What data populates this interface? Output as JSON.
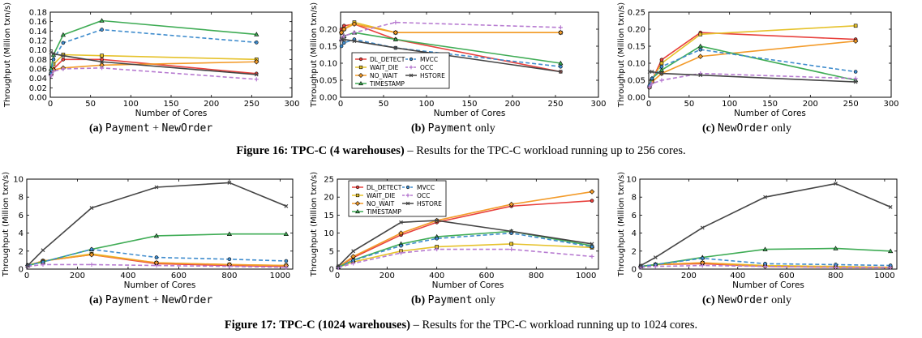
{
  "figure16": {
    "label": "Figure 16:",
    "title": "TPC-C (4 warehouses)",
    "text": "– Results for the TPC-C workload running up to 256 cores."
  },
  "figure17": {
    "label": "Figure 17:",
    "title": "TPC-C (1024 warehouses)",
    "text": "– Results for the TPC-C workload running up to 1024 cores."
  },
  "captions": [
    {
      "letter": "(a)",
      "p1": "Payment",
      "mid": " + ",
      "p2": "NewOrder",
      "tail": ""
    },
    {
      "letter": "(b)",
      "p1": "Payment",
      "mid": "",
      "p2": "",
      "tail": " only"
    },
    {
      "letter": "(c)",
      "p1": "",
      "mid": "",
      "p2": "NewOrder",
      "tail": " only"
    },
    {
      "letter": "(a)",
      "p1": "Payment",
      "mid": " + ",
      "p2": "NewOrder",
      "tail": ""
    },
    {
      "letter": "(b)",
      "p1": "Payment",
      "mid": "",
      "p2": "",
      "tail": " only"
    },
    {
      "letter": "(c)",
      "p1": "",
      "mid": "",
      "p2": "NewOrder",
      "tail": " only"
    }
  ],
  "series_styles": [
    {
      "name": "DL_DETECT",
      "color": "#e8413d",
      "dash": "",
      "marker": "circle"
    },
    {
      "name": "WAIT_DIE",
      "color": "#e6c22b",
      "dash": "",
      "marker": "square"
    },
    {
      "name": "NO_WAIT",
      "color": "#f39b2a",
      "dash": "",
      "marker": "diamond"
    },
    {
      "name": "TIMESTAMP",
      "color": "#3fac55",
      "dash": "",
      "marker": "triangle"
    },
    {
      "name": "MVCC",
      "color": "#3f8ccd",
      "dash": "5,3",
      "marker": "circle"
    },
    {
      "name": "OCC",
      "color": "#b77bd1",
      "dash": "5,3",
      "marker": "plus"
    },
    {
      "name": "HSTORE",
      "color": "#444444",
      "dash": "",
      "marker": "x"
    }
  ],
  "chart_data": [
    {
      "type": "line",
      "xlabel": "Number of Cores",
      "ylabel": "Throughput (Million txn/s)",
      "xlim": [
        0,
        300
      ],
      "ylim": [
        0,
        0.18
      ],
      "xticks": [
        "0",
        "50",
        "100",
        "150",
        "200",
        "250",
        "300"
      ],
      "yticks": [
        "0.00",
        "0.02",
        "0.04",
        "0.06",
        "0.08",
        "0.10",
        "0.12",
        "0.14",
        "0.16",
        "0.18"
      ],
      "legend": false,
      "x": [
        1,
        4,
        16,
        64,
        256
      ],
      "series": [
        {
          "name": "DL_DETECT",
          "values": [
            0.05,
            0.06,
            0.08,
            0.08,
            0.05
          ]
        },
        {
          "name": "WAIT_DIE",
          "values": [
            0.05,
            0.07,
            0.09,
            0.088,
            0.08
          ]
        },
        {
          "name": "NO_WAIT",
          "values": [
            0.048,
            0.058,
            0.062,
            0.068,
            0.075
          ]
        },
        {
          "name": "TIMESTAMP",
          "values": [
            0.06,
            0.09,
            0.132,
            0.162,
            0.133
          ]
        },
        {
          "name": "MVCC",
          "values": [
            0.05,
            0.08,
            0.115,
            0.143,
            0.116
          ]
        },
        {
          "name": "OCC",
          "values": [
            0.045,
            0.055,
            0.06,
            0.062,
            0.038
          ]
        },
        {
          "name": "HSTORE",
          "values": [
            0.095,
            0.092,
            0.088,
            0.075,
            0.048
          ]
        }
      ]
    },
    {
      "type": "line",
      "xlabel": "Number of Cores",
      "ylabel": "Throughput (Million txn/s)",
      "xlim": [
        0,
        300
      ],
      "ylim": [
        0,
        0.25
      ],
      "xticks": [
        "0",
        "50",
        "100",
        "150",
        "200",
        "250",
        "300"
      ],
      "yticks": [
        "0.00",
        "0.05",
        "0.10",
        "0.15",
        "0.20"
      ],
      "legend": true,
      "x": [
        1,
        4,
        16,
        64,
        256
      ],
      "series": [
        {
          "name": "DL_DETECT",
          "values": [
            0.2,
            0.21,
            0.215,
            0.17,
            0.075
          ]
        },
        {
          "name": "WAIT_DIE",
          "values": [
            0.19,
            0.2,
            0.22,
            0.19,
            0.19
          ]
        },
        {
          "name": "NO_WAIT",
          "values": [
            0.19,
            0.2,
            0.215,
            0.19,
            0.19
          ]
        },
        {
          "name": "TIMESTAMP",
          "values": [
            0.17,
            0.18,
            0.19,
            0.17,
            0.1
          ]
        },
        {
          "name": "MVCC",
          "values": [
            0.15,
            0.16,
            0.17,
            0.145,
            0.09
          ]
        },
        {
          "name": "OCC",
          "values": [
            0.17,
            0.18,
            0.19,
            0.22,
            0.205
          ]
        },
        {
          "name": "HSTORE",
          "values": [
            0.17,
            0.17,
            0.165,
            0.145,
            0.075
          ]
        }
      ]
    },
    {
      "type": "line",
      "xlabel": "Number of Cores",
      "ylabel": "Throughput (Million txn/s)",
      "xlim": [
        0,
        300
      ],
      "ylim": [
        0,
        0.25
      ],
      "xticks": [
        "0",
        "50",
        "100",
        "150",
        "200",
        "250",
        "300"
      ],
      "yticks": [
        "0.00",
        "0.05",
        "0.10",
        "0.15",
        "0.20",
        "0.25"
      ],
      "legend": false,
      "x": [
        1,
        4,
        16,
        64,
        256
      ],
      "series": [
        {
          "name": "DL_DETECT",
          "values": [
            0.03,
            0.05,
            0.11,
            0.19,
            0.17
          ]
        },
        {
          "name": "WAIT_DIE",
          "values": [
            0.03,
            0.05,
            0.1,
            0.185,
            0.21
          ]
        },
        {
          "name": "NO_WAIT",
          "values": [
            0.03,
            0.045,
            0.07,
            0.12,
            0.165
          ]
        },
        {
          "name": "TIMESTAMP",
          "values": [
            0.035,
            0.055,
            0.08,
            0.15,
            0.05
          ]
        },
        {
          "name": "MVCC",
          "values": [
            0.035,
            0.055,
            0.09,
            0.14,
            0.075
          ]
        },
        {
          "name": "OCC",
          "values": [
            0.03,
            0.04,
            0.05,
            0.07,
            0.055
          ]
        },
        {
          "name": "HSTORE",
          "values": [
            0.075,
            0.075,
            0.07,
            0.065,
            0.045
          ]
        }
      ]
    },
    {
      "type": "line",
      "xlabel": "Number of Cores",
      "ylabel": "Throughput (Million txn/s)",
      "xlim": [
        0,
        1050
      ],
      "ylim": [
        0,
        10
      ],
      "xticks": [
        "0",
        "200",
        "400",
        "600",
        "800",
        "1000"
      ],
      "yticks": [
        "0",
        "2",
        "4",
        "6",
        "8",
        "10"
      ],
      "legend": false,
      "x": [
        4,
        64,
        256,
        512,
        800,
        1024
      ],
      "series": [
        {
          "name": "DL_DETECT",
          "values": [
            0.4,
            0.9,
            1.6,
            0.6,
            0.4,
            0.3
          ]
        },
        {
          "name": "WAIT_DIE",
          "values": [
            0.4,
            0.9,
            1.7,
            0.7,
            0.5,
            0.4
          ]
        },
        {
          "name": "NO_WAIT",
          "values": [
            0.4,
            0.9,
            1.6,
            0.7,
            0.5,
            0.4
          ]
        },
        {
          "name": "TIMESTAMP",
          "values": [
            0.4,
            0.8,
            2.2,
            3.7,
            3.9,
            3.9
          ]
        },
        {
          "name": "MVCC",
          "values": [
            0.4,
            0.8,
            2.2,
            1.3,
            1.1,
            0.9
          ]
        },
        {
          "name": "OCC",
          "values": [
            0.3,
            0.5,
            0.5,
            0.4,
            0.3,
            0.2
          ]
        },
        {
          "name": "HSTORE",
          "values": [
            0.4,
            2.1,
            6.8,
            9.1,
            9.6,
            7.0
          ]
        }
      ]
    },
    {
      "type": "line",
      "xlabel": "Number of Cores",
      "ylabel": "Throughput (Million txn/s)",
      "xlim": [
        0,
        1050
      ],
      "ylim": [
        0,
        25
      ],
      "xticks": [
        "0",
        "200",
        "400",
        "600",
        "800",
        "1000"
      ],
      "yticks": [
        "0",
        "5",
        "10",
        "15",
        "20",
        "25"
      ],
      "legend": true,
      "x": [
        4,
        64,
        256,
        400,
        700,
        1024
      ],
      "series": [
        {
          "name": "DL_DETECT",
          "values": [
            0.6,
            3.2,
            9.5,
            13,
            17.5,
            19
          ]
        },
        {
          "name": "WAIT_DIE",
          "values": [
            0.5,
            2.0,
            5.0,
            6.2,
            7.0,
            6.0
          ]
        },
        {
          "name": "NO_WAIT",
          "values": [
            0.6,
            3.5,
            10,
            13.5,
            18,
            21.5
          ]
        },
        {
          "name": "TIMESTAMP",
          "values": [
            0.5,
            2.5,
            7.0,
            9.0,
            10.5,
            6.5
          ]
        },
        {
          "name": "MVCC",
          "values": [
            0.5,
            2.4,
            6.5,
            8.5,
            10,
            6.2
          ]
        },
        {
          "name": "OCC",
          "values": [
            0.4,
            1.6,
            4.5,
            5.5,
            5.5,
            3.5
          ]
        },
        {
          "name": "HSTORE",
          "values": [
            0.8,
            5.0,
            13,
            13.5,
            10.5,
            7.0
          ]
        }
      ]
    },
    {
      "type": "line",
      "xlabel": "Number of Cores",
      "ylabel": "Throughput (Million txn/s)",
      "xlim": [
        0,
        1050
      ],
      "ylim": [
        0,
        10
      ],
      "xticks": [
        "0",
        "200",
        "400",
        "600",
        "800",
        "1000"
      ],
      "yticks": [
        "0",
        "2",
        "4",
        "6",
        "8",
        "10"
      ],
      "legend": false,
      "x": [
        4,
        64,
        256,
        512,
        800,
        1024
      ],
      "series": [
        {
          "name": "DL_DETECT",
          "values": [
            0.3,
            0.5,
            0.6,
            0.3,
            0.2,
            0.2
          ]
        },
        {
          "name": "WAIT_DIE",
          "values": [
            0.3,
            0.5,
            0.7,
            0.4,
            0.3,
            0.2
          ]
        },
        {
          "name": "NO_WAIT",
          "values": [
            0.3,
            0.5,
            0.7,
            0.3,
            0.2,
            0.2
          ]
        },
        {
          "name": "TIMESTAMP",
          "values": [
            0.3,
            0.5,
            1.3,
            2.2,
            2.3,
            2.0
          ]
        },
        {
          "name": "MVCC",
          "values": [
            0.3,
            0.5,
            1.2,
            0.6,
            0.5,
            0.4
          ]
        },
        {
          "name": "OCC",
          "values": [
            0.2,
            0.3,
            0.4,
            0.3,
            0.2,
            0.15
          ]
        },
        {
          "name": "HSTORE",
          "values": [
            0.4,
            1.3,
            4.6,
            8.0,
            9.5,
            6.9
          ]
        }
      ]
    }
  ]
}
